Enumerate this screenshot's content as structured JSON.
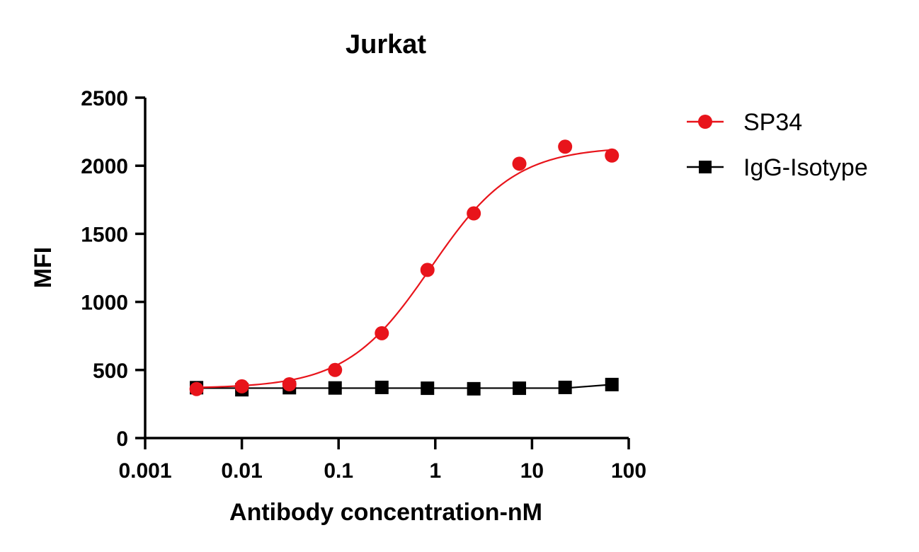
{
  "chart_data": {
    "type": "scatter",
    "title": "Jurkat",
    "xlabel": "Antibody concentration-nM",
    "ylabel": "MFI",
    "xscale": "log",
    "xlim": [
      0.001,
      100
    ],
    "ylim": [
      0,
      2500
    ],
    "xticks": [
      0.001,
      0.01,
      0.1,
      1,
      10,
      100
    ],
    "xtick_labels": [
      "0.001",
      "0.01",
      "0.1",
      "1",
      "10",
      "100"
    ],
    "yticks": [
      0,
      500,
      1000,
      1500,
      2000,
      2500
    ],
    "ytick_labels": [
      "0",
      "500",
      "1000",
      "1500",
      "2000",
      "2500"
    ],
    "grid": false,
    "legend_position": "right",
    "series": [
      {
        "name": "SP34",
        "color": "#e8141b",
        "marker": "circle",
        "fit": "sigmoid",
        "x": [
          0.0034,
          0.01,
          0.031,
          0.092,
          0.28,
          0.83,
          2.5,
          7.4,
          22,
          67
        ],
        "y": [
          360,
          380,
          395,
          500,
          770,
          1235,
          1650,
          2015,
          2140,
          2075
        ],
        "curve": {
          "bottom": 365,
          "top": 2140,
          "ec50": 0.9,
          "hill": 1.0
        }
      },
      {
        "name": "IgG-Isotype",
        "color": "#000000",
        "marker": "square",
        "fit": "line",
        "x": [
          0.0034,
          0.01,
          0.031,
          0.092,
          0.28,
          0.83,
          2.5,
          7.4,
          22,
          67
        ],
        "y": [
          370,
          355,
          370,
          368,
          372,
          366,
          362,
          366,
          372,
          393
        ]
      }
    ]
  }
}
